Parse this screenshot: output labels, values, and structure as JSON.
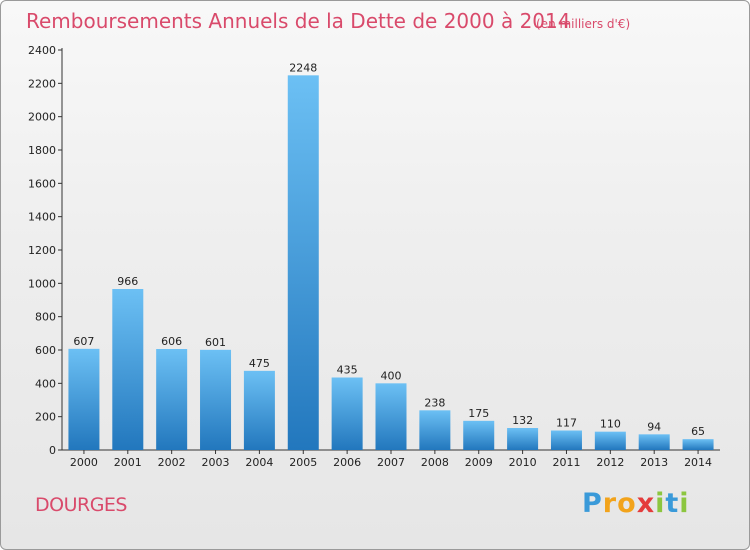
{
  "title": "Remboursements Annuels de la Dette de 2000 à 2014",
  "unit": "(en milliers d'€)",
  "commune": "DOURGES",
  "logo": {
    "letters": [
      "P",
      "r",
      "o",
      "x",
      "i",
      "t",
      "i"
    ],
    "colors": [
      "#3a9ad9",
      "#f2a31b",
      "#f2a31b",
      "#e43c3c",
      "#8cc63f",
      "#3a9ad9",
      "#8cc63f"
    ]
  },
  "colors": {
    "bar_top": "#6cc0f4",
    "bar_bottom": "#2277bd",
    "title": "#d94a6b",
    "axis": "#333333"
  },
  "chart_data": {
    "type": "bar",
    "categories": [
      "2000",
      "2001",
      "2002",
      "2003",
      "2004",
      "2005",
      "2006",
      "2007",
      "2008",
      "2009",
      "2010",
      "2011",
      "2012",
      "2013",
      "2014"
    ],
    "values": [
      607,
      966,
      606,
      601,
      475,
      2248,
      435,
      400,
      238,
      175,
      132,
      117,
      110,
      94,
      65
    ],
    "ylim": [
      0,
      2400
    ],
    "yticks": [
      0,
      200,
      400,
      600,
      800,
      1000,
      1200,
      1400,
      1600,
      1800,
      2000,
      2200,
      2400
    ],
    "grid": false
  }
}
